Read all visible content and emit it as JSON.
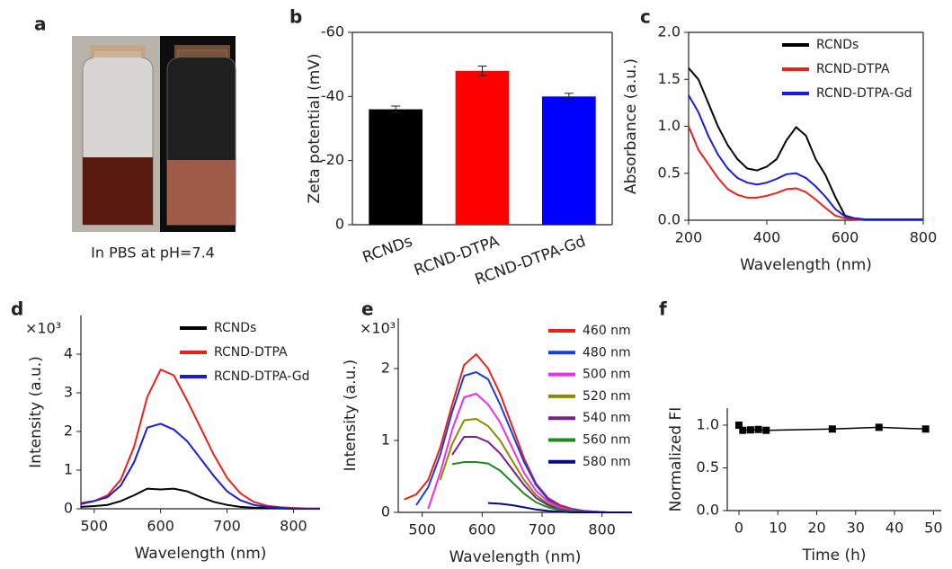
{
  "photo": {
    "label": "a",
    "caption": "In PBS at pH=7.4"
  },
  "chart_data": [
    {
      "type": "bar",
      "label": "b",
      "y_label": "Zeta potential (mV)",
      "categories": [
        "RCNDs",
        "RCND-DTPA",
        "RCND-DTPA-Gd"
      ],
      "values": [
        -36,
        -48,
        -40
      ],
      "errors": [
        1,
        1.5,
        1
      ],
      "colors": [
        "#000000",
        "#ff0000",
        "#0000ff"
      ],
      "ylim": [
        0,
        -60
      ],
      "yticks": [
        0,
        -20,
        -40,
        -60
      ]
    },
    {
      "type": "line",
      "label": "c",
      "x_label": "Wavelength (nm)",
      "y_label": "Absorbance (a.u.)",
      "legend": "upper right",
      "x": [
        200,
        225,
        250,
        275,
        300,
        325,
        350,
        375,
        400,
        425,
        450,
        475,
        500,
        525,
        550,
        575,
        600,
        625,
        650,
        675,
        700,
        725,
        750,
        775,
        800
      ],
      "series": [
        {
          "name": "RCNDs",
          "color": "#000000",
          "values": [
            1.62,
            1.5,
            1.25,
            1.0,
            0.8,
            0.65,
            0.55,
            0.53,
            0.57,
            0.65,
            0.85,
            0.99,
            0.9,
            0.65,
            0.48,
            0.25,
            0.05,
            0.02,
            0.01,
            0.01,
            0.01,
            0.01,
            0.01,
            0.01,
            0
          ]
        },
        {
          "name": "RCND-DTPA",
          "color": "#e8221b",
          "values": [
            1.0,
            0.75,
            0.6,
            0.45,
            0.33,
            0.27,
            0.24,
            0.24,
            0.26,
            0.29,
            0.33,
            0.34,
            0.3,
            0.22,
            0.13,
            0.05,
            0.02,
            0.01,
            0,
            0,
            0,
            0,
            0,
            0,
            0
          ]
        },
        {
          "name": "RCND-DTPA-Gd",
          "color": "#1c1cd8",
          "values": [
            1.33,
            1.15,
            0.9,
            0.7,
            0.55,
            0.45,
            0.4,
            0.38,
            0.4,
            0.44,
            0.49,
            0.5,
            0.45,
            0.36,
            0.25,
            0.12,
            0.04,
            0.02,
            0.01,
            0.01,
            0.01,
            0.01,
            0.01,
            0.01,
            0.01
          ]
        }
      ],
      "xlim": [
        200,
        800
      ],
      "xticks": [
        200,
        400,
        600,
        800
      ],
      "ylim": [
        0,
        2
      ],
      "yticks": [
        {
          "value": 0,
          "label": "0.0"
        },
        0.5,
        {
          "value": 1,
          "label": "1.0"
        },
        1.5,
        {
          "value": 2,
          "label": "2.0"
        }
      ]
    },
    {
      "type": "line",
      "label": "d",
      "x_label": "Wavelength (nm)",
      "y_label": "Intensity (a.u.)",
      "y_multiplier": "×10³",
      "legend": "upper right",
      "x": [
        480,
        500,
        520,
        540,
        560,
        580,
        600,
        620,
        640,
        660,
        680,
        700,
        720,
        740,
        760,
        780,
        800,
        820,
        840
      ],
      "series": [
        {
          "name": "RCNDs",
          "color": "#000000",
          "values": [
            0.05,
            0.07,
            0.1,
            0.2,
            0.35,
            0.52,
            0.5,
            0.52,
            0.45,
            0.3,
            0.18,
            0.1,
            0.05,
            0.03,
            0.02,
            0.01,
            0,
            0,
            0
          ]
        },
        {
          "name": "RCND-DTPA",
          "color": "#e8221b",
          "values": [
            0.15,
            0.2,
            0.35,
            0.75,
            1.6,
            2.9,
            3.6,
            3.45,
            2.8,
            2.1,
            1.4,
            0.8,
            0.4,
            0.18,
            0.08,
            0.04,
            0.02,
            0.01,
            0.01
          ]
        },
        {
          "name": "RCND-DTPA-Gd",
          "color": "#1c1cd8",
          "values": [
            0.12,
            0.2,
            0.3,
            0.6,
            1.2,
            2.1,
            2.2,
            2.05,
            1.75,
            1.3,
            0.85,
            0.45,
            0.22,
            0.1,
            0.05,
            0.02,
            0.01,
            0,
            0
          ]
        }
      ],
      "xlim": [
        480,
        840
      ],
      "xticks": [
        500,
        600,
        700,
        800
      ],
      "ylim": [
        0,
        5
      ],
      "yticks": [
        0,
        1,
        2,
        3,
        4
      ]
    },
    {
      "type": "line",
      "label": "e",
      "x_label": "Wavelength (nm)",
      "y_label": "Intensity (a.u.)",
      "y_multiplier": "×10³",
      "legend": "upper right",
      "x": [
        470,
        490,
        510,
        530,
        550,
        570,
        590,
        610,
        630,
        650,
        670,
        690,
        710,
        730,
        750,
        770,
        790,
        810,
        830,
        850
      ],
      "series": [
        {
          "name": "460 nm",
          "color": "#e8221b",
          "values": [
            0.18,
            0.25,
            0.45,
            0.9,
            1.5,
            2.05,
            2.2,
            2.0,
            1.65,
            1.2,
            0.75,
            0.4,
            0.2,
            0.1,
            0.05,
            0.02,
            0.01,
            0,
            0,
            0
          ]
        },
        {
          "name": "480 nm",
          "color": "#1a3fd6",
          "values": [
            null,
            0.1,
            0.35,
            0.8,
            1.4,
            1.9,
            1.95,
            1.85,
            1.5,
            1.1,
            0.7,
            0.38,
            0.18,
            0.08,
            0.04,
            0.02,
            0.01,
            0,
            0,
            0
          ]
        },
        {
          "name": "500 nm",
          "color": "#ee2ee8",
          "values": [
            null,
            null,
            0.05,
            0.55,
            1.15,
            1.6,
            1.65,
            1.5,
            1.25,
            0.9,
            0.55,
            0.3,
            0.15,
            0.07,
            0.03,
            0.01,
            0,
            0,
            0,
            0
          ]
        },
        {
          "name": "520 nm",
          "color": "#8a8a00",
          "values": [
            null,
            null,
            null,
            0.45,
            0.95,
            1.28,
            1.3,
            1.2,
            1.0,
            0.72,
            0.45,
            0.24,
            0.12,
            0.05,
            0.02,
            0.01,
            0,
            0,
            0,
            0
          ]
        },
        {
          "name": "540 nm",
          "color": "#7a1f8a",
          "values": [
            null,
            null,
            null,
            null,
            0.8,
            1.05,
            1.05,
            0.98,
            0.82,
            0.6,
            0.38,
            0.2,
            0.1,
            0.04,
            0.02,
            0.01,
            0,
            0,
            0,
            0
          ]
        },
        {
          "name": "560 nm",
          "color": "#1f8a1f",
          "values": [
            null,
            null,
            null,
            null,
            0.67,
            0.7,
            0.7,
            0.68,
            0.58,
            0.42,
            0.26,
            0.14,
            0.07,
            0.03,
            0.01,
            0,
            0,
            0,
            0,
            0
          ]
        },
        {
          "name": "580 nm",
          "color": "#0a0a80",
          "values": [
            null,
            null,
            null,
            null,
            null,
            null,
            null,
            0.13,
            0.12,
            0.1,
            0.07,
            0.04,
            0.02,
            0.01,
            0,
            0,
            0,
            0,
            0,
            0
          ]
        }
      ],
      "xlim": [
        460,
        850
      ],
      "xticks": [
        500,
        600,
        700,
        800
      ],
      "ylim": [
        0,
        2.7
      ],
      "yticks": [
        0,
        1,
        2
      ]
    },
    {
      "type": "scatter",
      "label": "f",
      "x_label": "Time (h)",
      "y_label": "Normalized FI",
      "x": [
        0,
        1,
        3,
        5,
        7,
        24,
        36,
        48
      ],
      "values": [
        1.0,
        0.94,
        0.945,
        0.95,
        0.94,
        0.955,
        0.975,
        0.955
      ],
      "color": "#000000",
      "xlim": [
        -3,
        52
      ],
      "xticks": [
        0,
        10,
        20,
        30,
        40,
        50
      ],
      "ylim": [
        0,
        1.2
      ],
      "yticks": [
        {
          "value": 0,
          "label": "0.0"
        },
        0.5,
        {
          "value": 1,
          "label": "1.0"
        }
      ]
    }
  ]
}
